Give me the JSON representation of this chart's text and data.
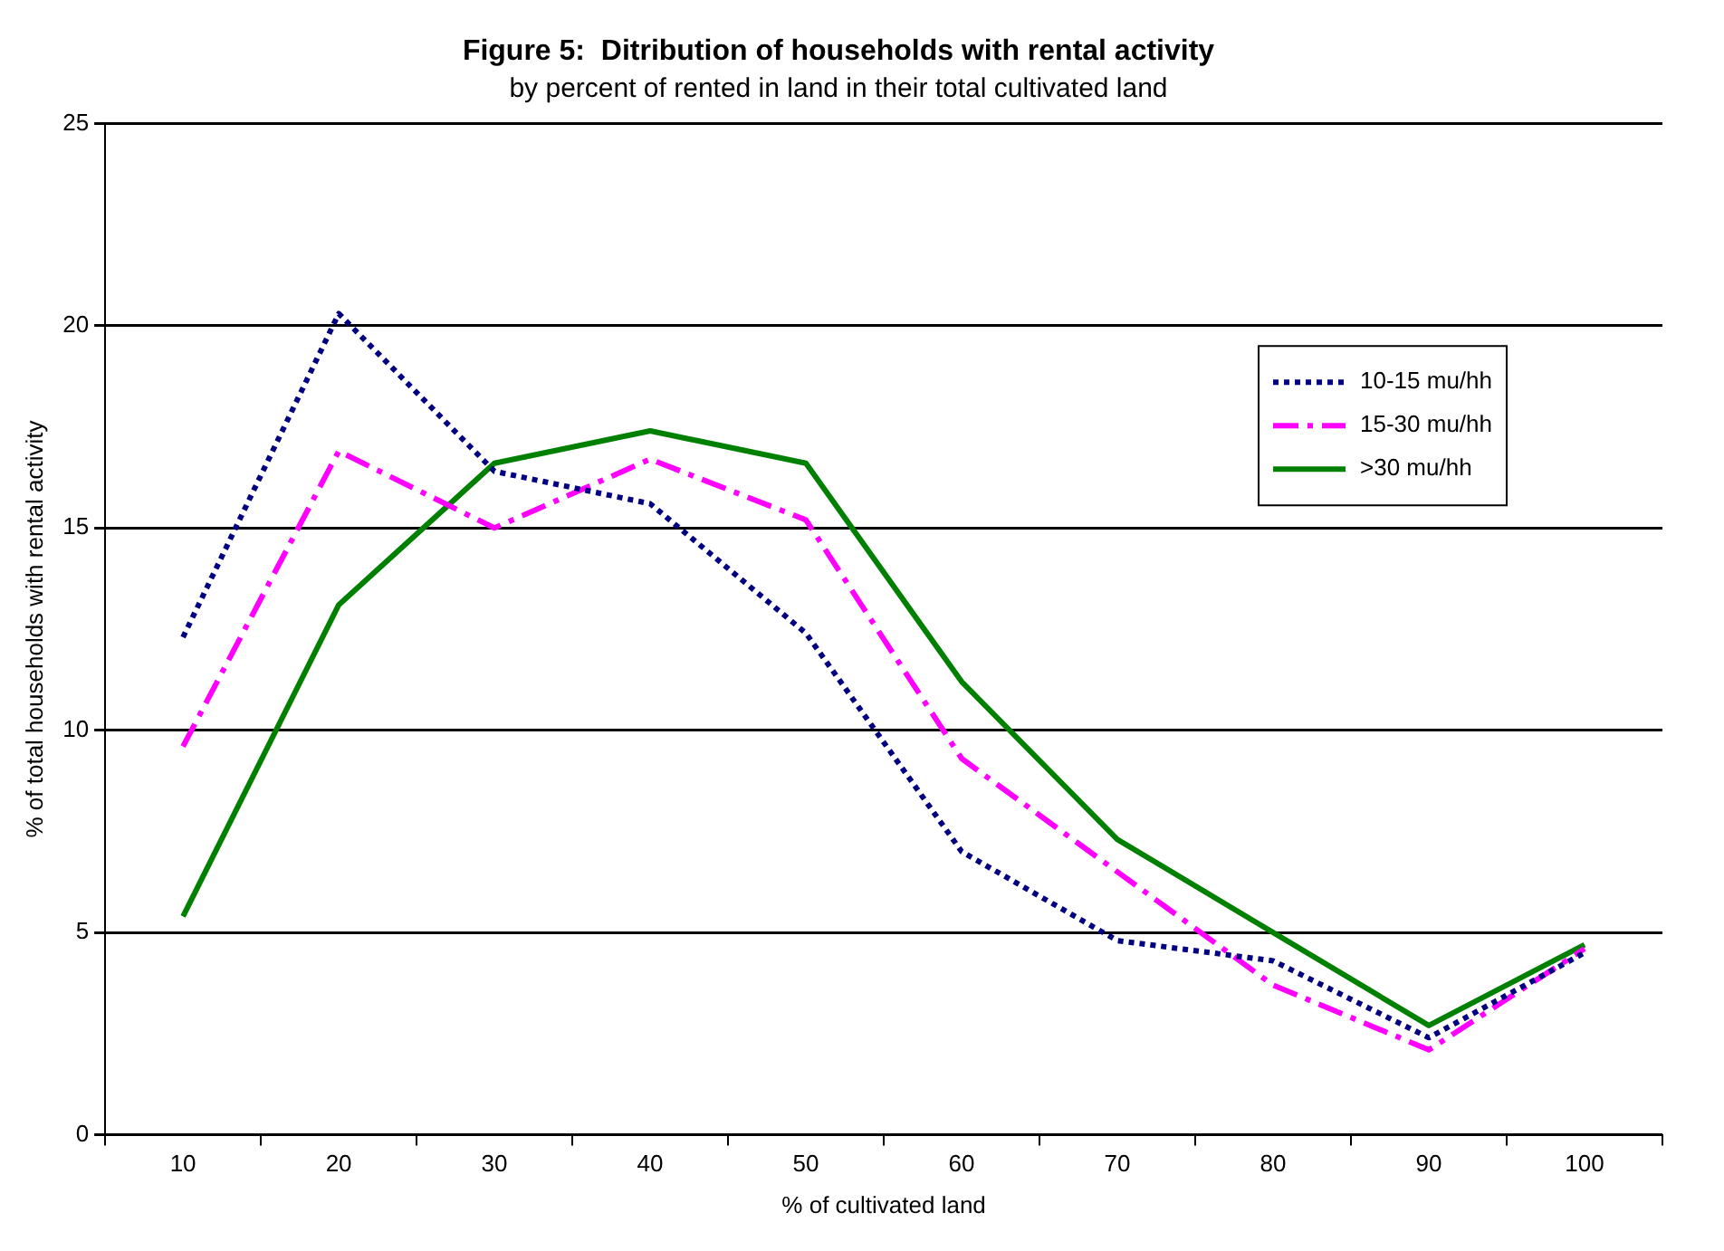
{
  "chart_data": {
    "type": "line",
    "title": "Figure 5:  Ditribution of households with rental activity",
    "subtitle": "by percent of rented in land in their total cultivated land",
    "xlabel": "% of cultivated land",
    "ylabel": "% of total households with rental activity",
    "categories": [
      "10",
      "20",
      "30",
      "40",
      "50",
      "60",
      "70",
      "80",
      "90",
      "100"
    ],
    "series": [
      {
        "name": "10-15 mu/hh",
        "color": "#000080",
        "line_style": "dotted",
        "values": [
          12.3,
          20.3,
          16.4,
          15.6,
          12.4,
          7.0,
          4.8,
          4.3,
          2.4,
          4.5
        ]
      },
      {
        "name": "15-30 mu/hh",
        "color": "#ff00ff",
        "line_style": "dashed",
        "values": [
          9.6,
          16.9,
          15.0,
          16.7,
          15.2,
          9.3,
          6.5,
          3.7,
          2.1,
          4.6
        ]
      },
      {
        "name": ">30 mu/hh",
        "color": "#008000",
        "line_style": "solid",
        "values": [
          5.4,
          13.1,
          16.6,
          17.4,
          16.6,
          11.2,
          7.3,
          5.0,
          2.7,
          4.7
        ]
      }
    ],
    "ylim": [
      0,
      25
    ],
    "yticks": [
      0,
      5,
      10,
      15,
      20,
      25
    ],
    "grid": "y",
    "legend": "top right",
    "marker": "none"
  }
}
